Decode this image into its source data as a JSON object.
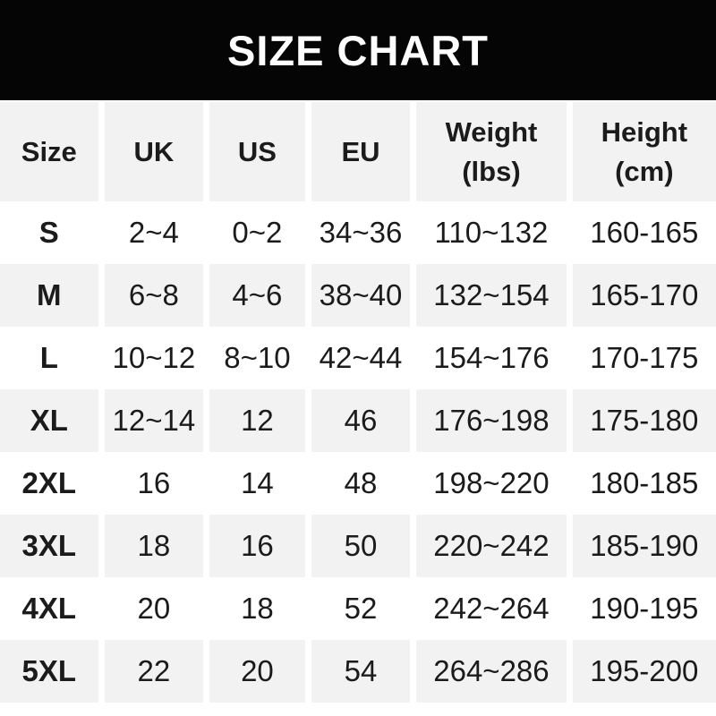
{
  "banner": {
    "title": "SIZE CHART"
  },
  "colors": {
    "banner_bg": "#050505",
    "banner_fg": "#ffffff",
    "header_row_bg": "#f2f2f2",
    "alt_row_bg": "#f2f2f2",
    "row_bg": "#ffffff",
    "text": "#1b1b1b",
    "gutter": "#ffffff"
  },
  "table": {
    "headers": [
      {
        "l1": "Size",
        "l2": ""
      },
      {
        "l1": "UK",
        "l2": ""
      },
      {
        "l1": "US",
        "l2": ""
      },
      {
        "l1": "EU",
        "l2": ""
      },
      {
        "l1": "Weight",
        "l2": "(lbs)"
      },
      {
        "l1": "Height",
        "l2": "(cm)"
      }
    ],
    "rows": [
      {
        "cells": [
          "S",
          "2~4",
          "0~2",
          "34~36",
          "110~132",
          "160-165"
        ]
      },
      {
        "cells": [
          "M",
          "6~8",
          "4~6",
          "38~40",
          "132~154",
          "165-170"
        ]
      },
      {
        "cells": [
          "L",
          "10~12",
          "8~10",
          "42~44",
          "154~176",
          "170-175"
        ]
      },
      {
        "cells": [
          "XL",
          "12~14",
          "12",
          "46",
          "176~198",
          "175-180"
        ]
      },
      {
        "cells": [
          "2XL",
          "16",
          "14",
          "48",
          "198~220",
          "180-185"
        ]
      },
      {
        "cells": [
          "3XL",
          "18",
          "16",
          "50",
          "220~242",
          "185-190"
        ]
      },
      {
        "cells": [
          "4XL",
          "20",
          "18",
          "52",
          "242~264",
          "190-195"
        ]
      },
      {
        "cells": [
          "5XL",
          "22",
          "20",
          "54",
          "264~286",
          "195-200"
        ]
      }
    ]
  },
  "chart_data": {
    "type": "table",
    "title": "SIZE CHART",
    "columns": [
      "Size",
      "UK",
      "US",
      "EU",
      "Weight (lbs)",
      "Height (cm)"
    ],
    "rows": [
      [
        "S",
        "2~4",
        "0~2",
        "34~36",
        "110~132",
        "160-165"
      ],
      [
        "M",
        "6~8",
        "4~6",
        "38~40",
        "132~154",
        "165-170"
      ],
      [
        "L",
        "10~12",
        "8~10",
        "42~44",
        "154~176",
        "170-175"
      ],
      [
        "XL",
        "12~14",
        "12",
        "46",
        "176~198",
        "175-180"
      ],
      [
        "2XL",
        "16",
        "14",
        "48",
        "198~220",
        "180-185"
      ],
      [
        "3XL",
        "18",
        "16",
        "50",
        "220~242",
        "185-190"
      ],
      [
        "4XL",
        "20",
        "18",
        "52",
        "242~264",
        "190-195"
      ],
      [
        "5XL",
        "22",
        "20",
        "54",
        "264~286",
        "195-200"
      ]
    ],
    "layout": {
      "header_band": "black",
      "alternating_rows": true,
      "column_gutters": true
    }
  }
}
